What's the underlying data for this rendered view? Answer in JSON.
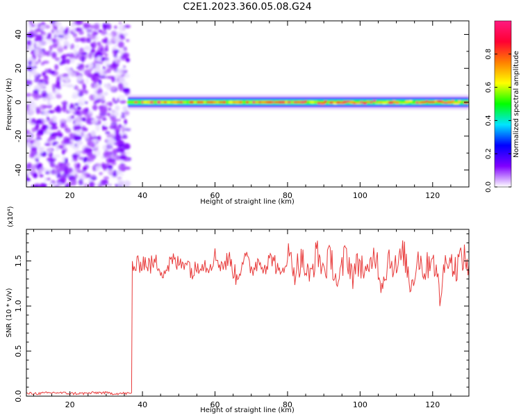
{
  "figure_title": "C2E1.2023.360.05.08.G24",
  "chart_data": [
    {
      "type": "heatmap",
      "id": "spectrogram",
      "xlabel": "Height of straight line (km)",
      "ylabel": "Frequency (Hz)",
      "xlim": [
        8,
        130
      ],
      "ylim": [
        -50,
        48
      ],
      "xticks": [
        20,
        40,
        60,
        80,
        100,
        120
      ],
      "yticks": [
        -40,
        -20,
        0,
        20,
        40
      ],
      "grid": false,
      "regions": [
        {
          "name": "noise",
          "x_range": [
            8,
            36
          ],
          "freq_range": [
            -50,
            48
          ],
          "dominant_amplitude": 0.1
        },
        {
          "name": "signal",
          "x_range": [
            36,
            130
          ],
          "center_frequency": 0,
          "band_halfwidth": 3,
          "dominant_amplitude": 0.8
        }
      ],
      "colorbar": {
        "label": "Normalized spectral amplitude",
        "range": [
          0.0,
          1.0
        ],
        "ticks": [
          0.0,
          0.2,
          0.4,
          0.6,
          0.8
        ],
        "tick_labels": [
          "0.0",
          "0.2",
          "0.4",
          "0.6",
          "0.8"
        ],
        "colors": [
          "#ffffff",
          "#8000ff",
          "#0000ff",
          "#00e5ff",
          "#00ff00",
          "#ffff00",
          "#ff8000",
          "#ff0033",
          "#ff1a80"
        ]
      }
    },
    {
      "type": "line",
      "id": "snr",
      "xlabel": "Height of straight line (km)",
      "ylabel": "SNR (10 * v/v)",
      "y_multiplier": "(x10⁴)",
      "xlim": [
        8,
        130
      ],
      "ylim": [
        0,
        1.85
      ],
      "xticks": [
        20,
        40,
        60,
        80,
        100,
        120
      ],
      "yticks": [
        0.0,
        0.5,
        1.0,
        1.5
      ],
      "ytick_labels": [
        "0.0",
        "0.5",
        "1.0",
        "1.5"
      ],
      "grid": false,
      "series": [
        {
          "color": "#e83a3a",
          "x": [
            8,
            12,
            16,
            20,
            24,
            28,
            32,
            36,
            37,
            37.2,
            38,
            40,
            42,
            44,
            46,
            48,
            50,
            52,
            54,
            56,
            58,
            60,
            62,
            64,
            66,
            68,
            70,
            72,
            74,
            76,
            78,
            80,
            82,
            84,
            86,
            88,
            90,
            92,
            94,
            96,
            98,
            100,
            102,
            104,
            106,
            108,
            110,
            112,
            114,
            116,
            118,
            120,
            122,
            124,
            126,
            128,
            130
          ],
          "y": [
            0.03,
            0.03,
            0.04,
            0.03,
            0.03,
            0.04,
            0.03,
            0.03,
            0.03,
            1.48,
            1.42,
            1.5,
            1.45,
            1.48,
            1.38,
            1.5,
            1.46,
            1.52,
            1.36,
            1.5,
            1.44,
            1.55,
            1.45,
            1.52,
            1.3,
            1.56,
            1.4,
            1.5,
            1.45,
            1.55,
            1.3,
            1.58,
            1.4,
            1.52,
            1.28,
            1.6,
            1.4,
            1.55,
            1.2,
            1.6,
            1.35,
            1.5,
            1.3,
            1.62,
            1.25,
            1.55,
            1.4,
            1.6,
            1.22,
            1.55,
            1.38,
            1.6,
            1.1,
            1.6,
            1.4,
            1.55,
            1.45
          ]
        }
      ]
    }
  ]
}
